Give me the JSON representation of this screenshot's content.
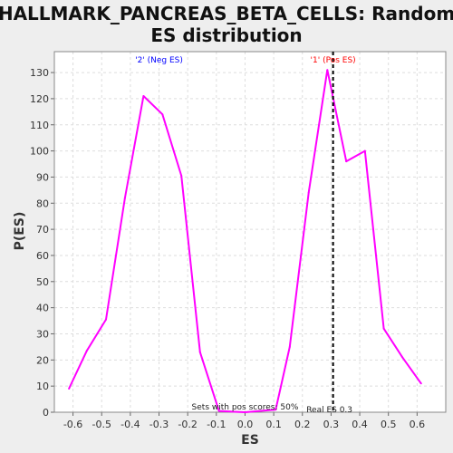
{
  "chart_data": {
    "type": "line",
    "title_lines": [
      "HALLMARK_PANCREAS_BETA_CELLS: Random",
      "ES distribution"
    ],
    "xlabel": "ES",
    "ylabel": "P(ES)",
    "xlim": [
      -0.665,
      0.7
    ],
    "ylim": [
      0,
      138
    ],
    "x_ticks": [
      -0.6,
      -0.5,
      -0.4,
      -0.3,
      -0.2,
      -0.1,
      0.0,
      0.1,
      0.2,
      0.3,
      0.4,
      0.5,
      0.6
    ],
    "x_tick_labels": [
      "-0.6",
      "-0.5",
      "-0.4",
      "-0.3",
      "-0.2",
      "-0.1",
      "0.0",
      "0.1",
      "0.2",
      "0.3",
      "0.4",
      "0.5",
      "0.6"
    ],
    "y_ticks": [
      0,
      10,
      20,
      30,
      40,
      50,
      60,
      70,
      80,
      90,
      100,
      110,
      120,
      130
    ],
    "y_tick_labels": [
      "0",
      "10",
      "20",
      "30",
      "40",
      "50",
      "60",
      "70",
      "80",
      "90",
      "100",
      "110",
      "120",
      "130"
    ],
    "grid": true,
    "series": [
      {
        "color": "#ff00ff",
        "x": [
          -0.614,
          -0.552,
          -0.485,
          -0.419,
          -0.354,
          -0.288,
          -0.222,
          -0.157,
          -0.091,
          0.0,
          0.107,
          0.156,
          0.222,
          0.287,
          0.353,
          0.418,
          0.484,
          0.549,
          0.614
        ],
        "y": [
          9,
          23.5,
          35.5,
          82,
          121,
          114,
          90.5,
          23,
          0.5,
          0,
          1,
          25,
          84,
          131,
          96,
          100,
          32,
          21,
          11
        ]
      }
    ],
    "real_es": {
      "x": 0.307,
      "label": "Real ES 0.3",
      "color": "#000000"
    },
    "annotations": {
      "neg_label": "'2' (Neg ES)",
      "neg_x": -0.3,
      "neg_color": "#0000ff",
      "pos_label": "'1' (Pos ES)",
      "pos_x": 0.307,
      "pos_color": "#ff0000",
      "pos_scores": "Sets with pos scores: 50%"
    },
    "colors": {
      "background": "#eeeeee",
      "plot_background": "#ffffff",
      "grid": "#dddddd"
    }
  }
}
